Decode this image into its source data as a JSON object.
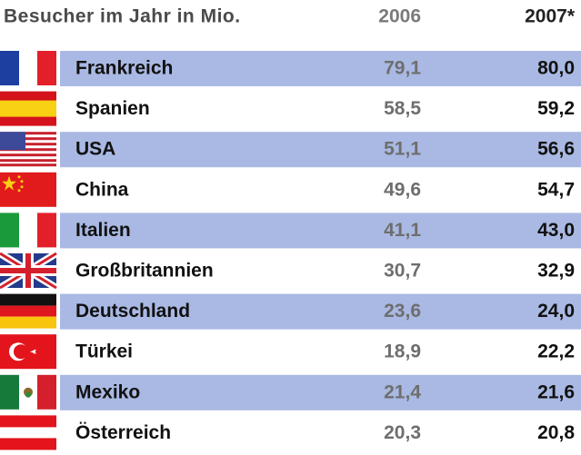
{
  "table": {
    "header": [
      "Besucher im Jahr in Mio.",
      "2006",
      "2007*"
    ],
    "rows": [
      [
        "Frankreich",
        "79,1",
        "80,0"
      ],
      [
        "Spanien",
        "58,5",
        "59,2"
      ],
      [
        "USA",
        "51,1",
        "56,6"
      ],
      [
        "China",
        "49,6",
        "54,7"
      ],
      [
        "Italien",
        "41,1",
        "43,0"
      ],
      [
        "Großbritannien",
        "30,7",
        "32,9"
      ],
      [
        "Deutschland",
        "23,6",
        "24,0"
      ],
      [
        "Türkei",
        "18,9",
        "22,2"
      ],
      [
        "Mexiko",
        "21,4",
        "21,6"
      ],
      [
        "Österreich",
        "20,3",
        "20,8"
      ]
    ]
  }
}
